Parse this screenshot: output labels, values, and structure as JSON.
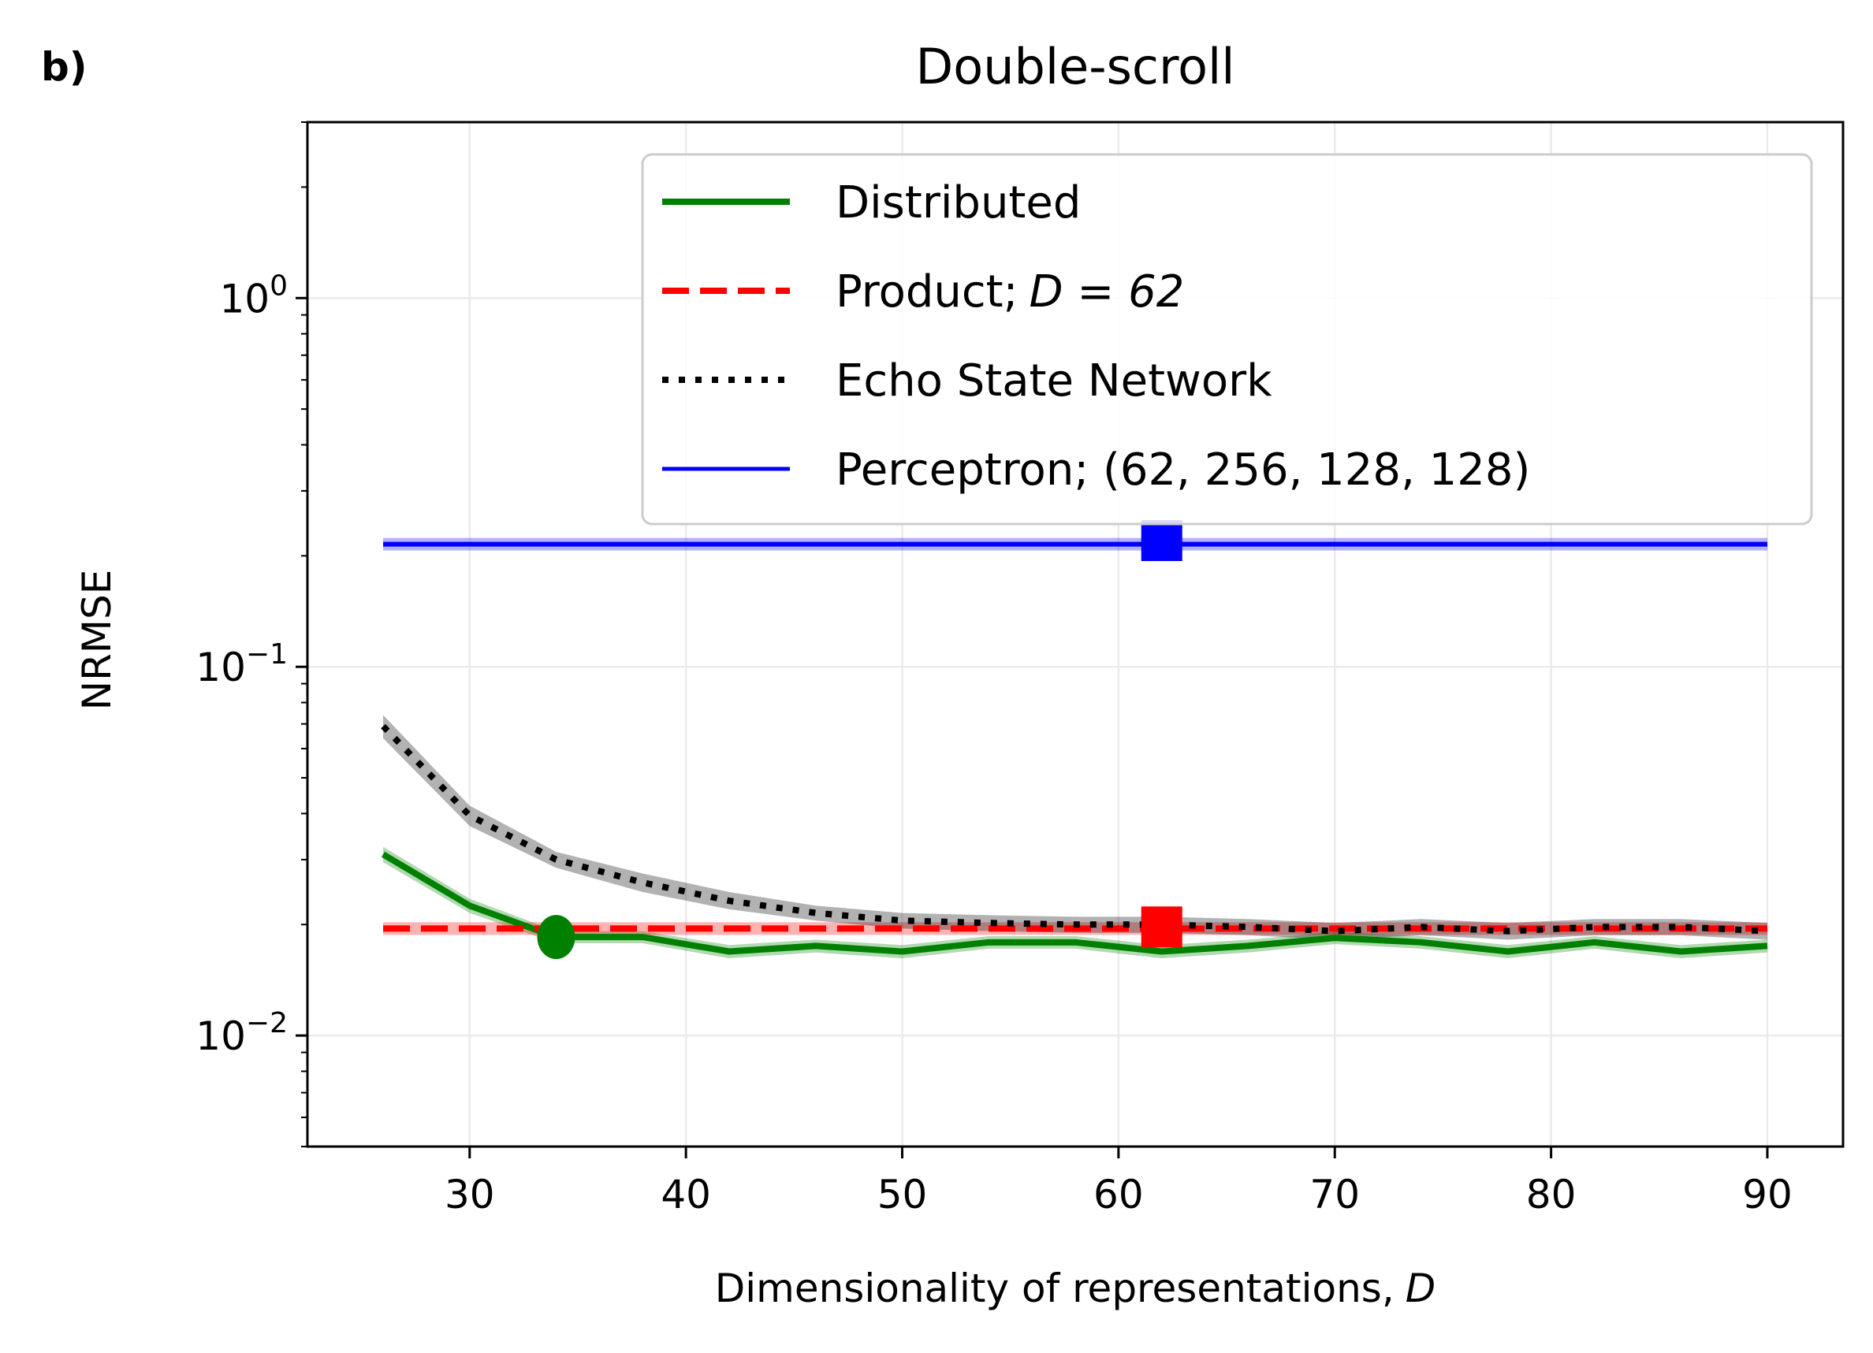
{
  "panel_label": "b)",
  "chart_data": {
    "type": "line",
    "title": "Double-scroll",
    "xlabel": "Dimensionality of representations,",
    "xlabel_var": "D",
    "ylabel": "NRMSE",
    "xlim": [
      22.5,
      93.5
    ],
    "ylim": [
      0.005,
      3.0
    ],
    "yscale": "log",
    "grid": true,
    "legend_position": "top-right",
    "x_ticks": [
      30,
      40,
      50,
      60,
      70,
      80,
      90
    ],
    "y_ticks": [
      {
        "value": 1,
        "base": "10",
        "exp": "0"
      },
      {
        "value": 0.1,
        "base": "10",
        "exp": "−1"
      },
      {
        "value": 0.01,
        "base": "10",
        "exp": "−2"
      }
    ],
    "x": [
      26,
      30,
      34,
      38,
      42,
      46,
      50,
      54,
      58,
      62,
      66,
      70,
      74,
      78,
      82,
      86,
      90
    ],
    "series": [
      {
        "name": "Distributed",
        "color": "#008000",
        "style": "solid",
        "band_lo": [
          0.0295,
          0.0215,
          0.0178,
          0.0178,
          0.0162,
          0.0168,
          0.0162,
          0.0172,
          0.0172,
          0.0162,
          0.0168,
          0.0177,
          0.0172,
          0.0162,
          0.0172,
          0.0162,
          0.0168
        ],
        "band_hi": [
          0.0325,
          0.0235,
          0.0192,
          0.0192,
          0.0176,
          0.0182,
          0.0176,
          0.0186,
          0.0186,
          0.0176,
          0.0182,
          0.0191,
          0.0186,
          0.0176,
          0.0186,
          0.0176,
          0.0182
        ],
        "values": [
          0.031,
          0.0225,
          0.0185,
          0.0185,
          0.0169,
          0.0175,
          0.0169,
          0.0179,
          0.0179,
          0.0169,
          0.0175,
          0.0184,
          0.0179,
          0.0169,
          0.0179,
          0.0169,
          0.0175
        ],
        "marker": {
          "x": 34,
          "y": 0.0185,
          "shape": "circle"
        }
      },
      {
        "name": "Product;",
        "name_math": "D = 62",
        "color": "#ff0000",
        "style": "dashed",
        "values": [
          0.0195,
          0.0195,
          0.0195,
          0.0195,
          0.0195,
          0.0195,
          0.0195,
          0.0195,
          0.0195,
          0.0195,
          0.0195,
          0.0195,
          0.0195,
          0.0195,
          0.0195,
          0.0195,
          0.0195
        ],
        "marker": {
          "x": 62,
          "y": 0.0197,
          "shape": "square"
        }
      },
      {
        "name": "Echo State Network",
        "color": "#000000",
        "style": "dotted",
        "band_lo": [
          0.064,
          0.037,
          0.0285,
          0.0245,
          0.022,
          0.0205,
          0.0195,
          0.0192,
          0.019,
          0.019,
          0.0187,
          0.0182,
          0.0187,
          0.0182,
          0.0187,
          0.0187,
          0.0182
        ],
        "band_hi": [
          0.074,
          0.042,
          0.0315,
          0.0275,
          0.0245,
          0.0225,
          0.0215,
          0.0212,
          0.021,
          0.021,
          0.0207,
          0.0202,
          0.0207,
          0.0202,
          0.0207,
          0.0207,
          0.0202
        ],
        "values": [
          0.069,
          0.0395,
          0.03,
          0.026,
          0.0232,
          0.0215,
          0.0205,
          0.0202,
          0.02,
          0.02,
          0.0197,
          0.0192,
          0.0197,
          0.0192,
          0.0197,
          0.0197,
          0.0192
        ]
      },
      {
        "name": "Perceptron; (62, 256, 128, 128)",
        "color": "#0000ff",
        "style": "solid",
        "values": [
          0.215,
          0.215,
          0.215,
          0.215,
          0.215,
          0.215,
          0.215,
          0.215,
          0.215,
          0.215,
          0.215,
          0.215,
          0.215,
          0.215,
          0.215,
          0.215,
          0.215
        ],
        "marker": {
          "x": 62,
          "y": 0.22,
          "shape": "square"
        }
      }
    ]
  }
}
